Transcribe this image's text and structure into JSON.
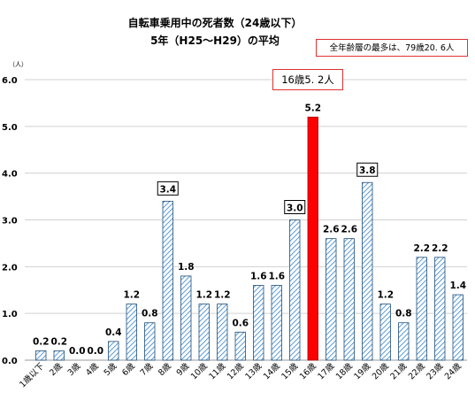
{
  "chart_data": {
    "type": "bar",
    "title_line1": "自転車乗用中の死者数（24歳以下）",
    "title_line2": "5年（H25～H29）の平均",
    "ylabel": "（人）",
    "ylim": [
      0,
      6
    ],
    "yticks": [
      "0.0",
      "1.0",
      "2.0",
      "3.0",
      "4.0",
      "5.0",
      "6.0"
    ],
    "grid": true,
    "categories": [
      "1歳以下",
      "2歳",
      "3歳",
      "4歳",
      "5歳",
      "6歳",
      "7歳",
      "8歳",
      "9歳",
      "10歳",
      "11歳",
      "12歳",
      "13歳",
      "14歳",
      "15歳",
      "16歳",
      "17歳",
      "18歳",
      "19歳",
      "20歳",
      "21歳",
      "22歳",
      "23歳",
      "24歳"
    ],
    "values": [
      0.2,
      0.2,
      0.0,
      0.0,
      0.4,
      1.2,
      0.8,
      3.4,
      1.8,
      1.2,
      1.2,
      0.6,
      1.6,
      1.6,
      3.0,
      5.2,
      2.6,
      2.6,
      3.8,
      1.2,
      0.8,
      2.2,
      2.2,
      1.4
    ],
    "labels": [
      "0.2",
      "0.2",
      "0.0",
      "0.0",
      "0.4",
      "1.2",
      "0.8",
      "3.4",
      "1.8",
      "1.2",
      "1.2",
      "0.6",
      "1.6",
      "1.6",
      "3.0",
      "5.2",
      "2.6",
      "2.6",
      "3.8",
      "1.2",
      "0.8",
      "2.2",
      "2.2",
      "1.4"
    ],
    "highlight_index": 15,
    "boxed_label_indices": [
      7,
      14,
      18
    ],
    "colors": {
      "bar_stroke": "#1f4e79",
      "bar_hatch": "#5b9bd5",
      "highlight": "#ff0000",
      "box_border": "#e03030"
    },
    "annotations": {
      "overall_max": "全年齢層の最多は、79歳20. 6人",
      "callout": "16歳5. 2人"
    }
  }
}
